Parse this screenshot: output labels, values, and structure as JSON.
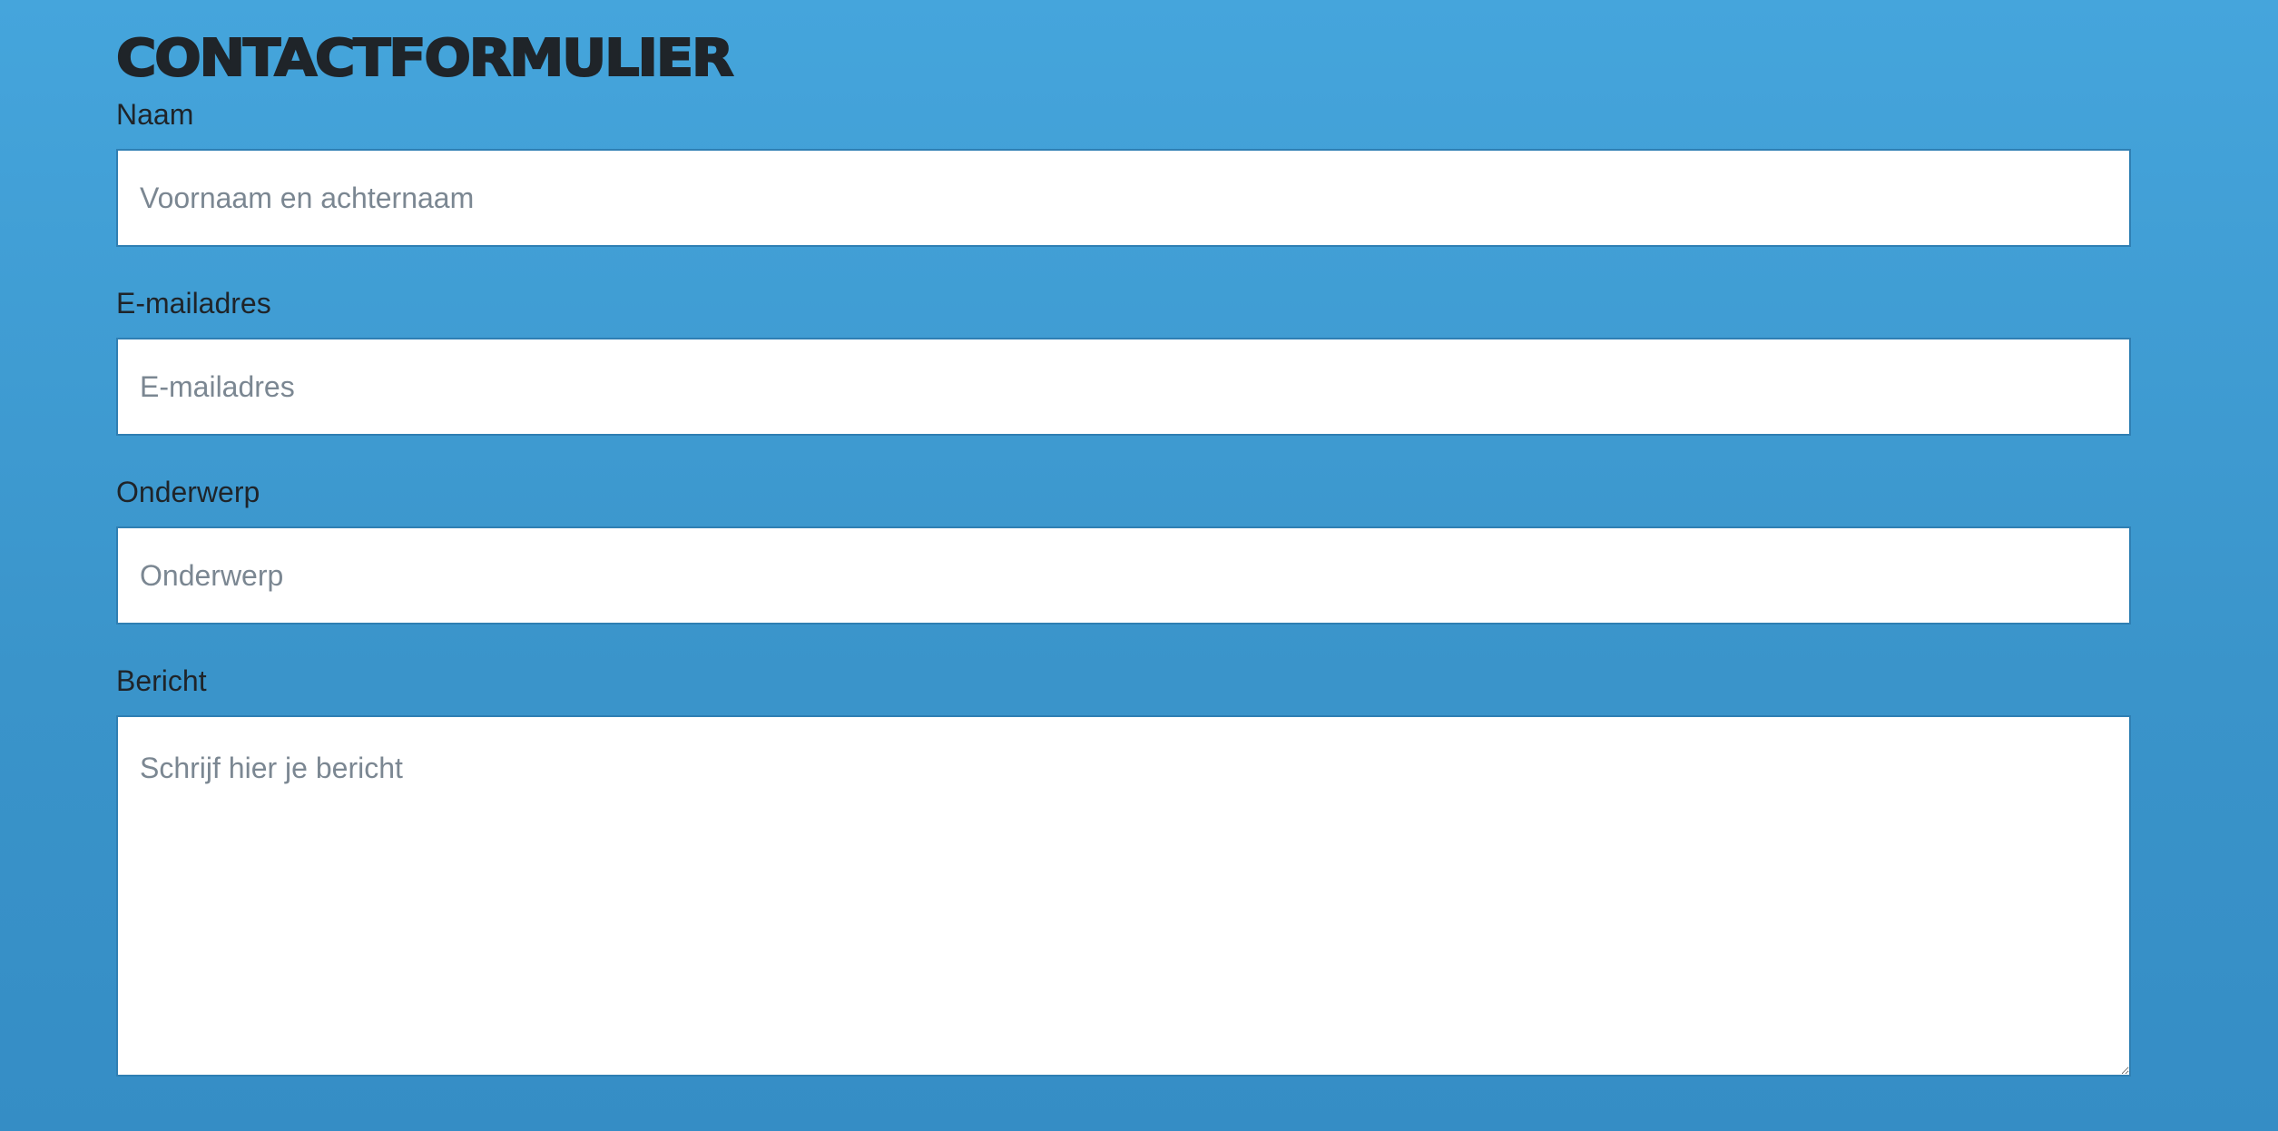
{
  "form": {
    "title": "CONTACTFORMULIER",
    "fields": {
      "name": {
        "label": "Naam",
        "placeholder": "Voornaam en achternaam",
        "value": ""
      },
      "email": {
        "label": "E-mailadres",
        "placeholder": "E-mailadres",
        "value": ""
      },
      "subject": {
        "label": "Onderwerp",
        "placeholder": "Onderwerp",
        "value": ""
      },
      "message": {
        "label": "Bericht",
        "placeholder": "Schrijf hier je bericht",
        "value": ""
      }
    }
  },
  "colors": {
    "background_top": "#45a5dc",
    "background_bottom": "#358dc5",
    "text": "#1f2429",
    "input_bg": "#ffffff",
    "placeholder": "#7b8792"
  }
}
